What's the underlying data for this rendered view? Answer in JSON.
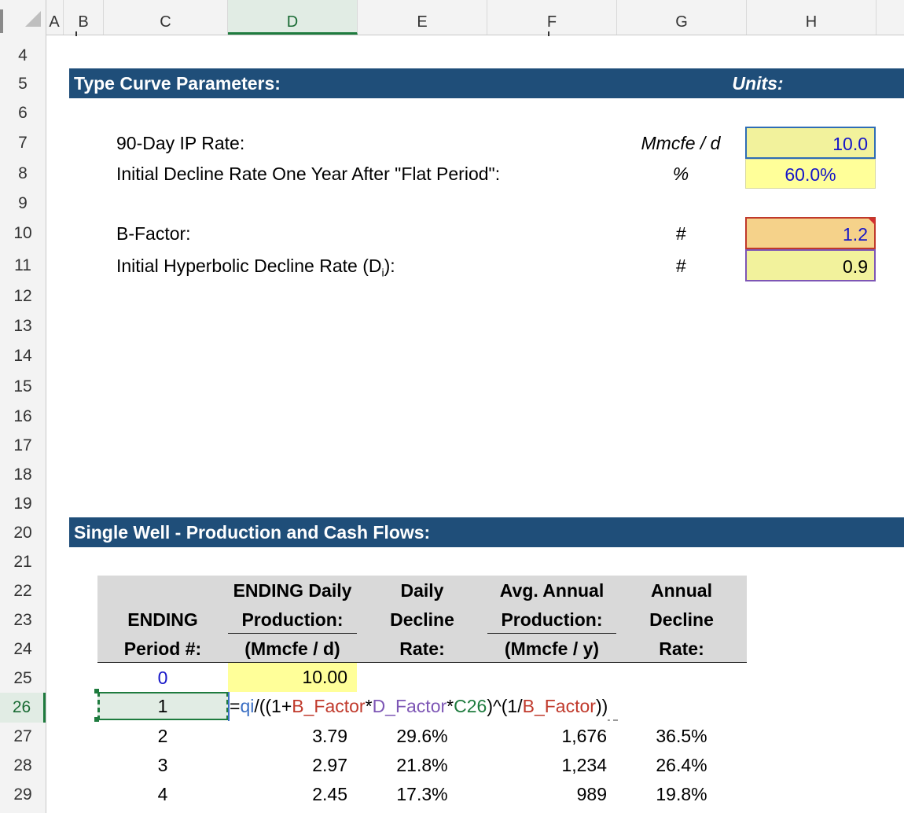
{
  "sheet": {
    "columns": [
      "A",
      "B",
      "C",
      "D",
      "E",
      "F",
      "G",
      "H"
    ],
    "rows": [
      "4",
      "5",
      "6",
      "7",
      "8",
      "9",
      "10",
      "11",
      "12",
      "13",
      "14",
      "15",
      "16",
      "17",
      "18",
      "19",
      "20",
      "21",
      "22",
      "23",
      "24",
      "25",
      "26",
      "27",
      "28",
      "29"
    ],
    "selected_column": "D",
    "selected_row": "26"
  },
  "type_curve": {
    "title": "Type Curve Parameters:",
    "units_header": "Units:",
    "params": [
      {
        "label": "90-Day IP Rate:",
        "unit": "Mmcfe / d",
        "value": "10.0"
      },
      {
        "label": "Initial Decline Rate One Year After \"Flat Period\":",
        "unit": "%",
        "value": "60.0%"
      },
      {
        "label": "B-Factor:",
        "unit": "#",
        "value": "1.2"
      },
      {
        "label_prefix": "Initial Hyperbolic Decline Rate (D",
        "label_sub": "i",
        "label_suffix": "):",
        "unit": "#",
        "value": "0.9"
      }
    ]
  },
  "single_well": {
    "title": "Single Well - Production and Cash Flows:",
    "headers": {
      "period": [
        "ENDING",
        "Period #:"
      ],
      "daily_prod": [
        "ENDING Daily",
        "Production:",
        "(Mmcfe / d)"
      ],
      "daily_decline": [
        "Daily",
        "Decline",
        "Rate:"
      ],
      "annual_prod": [
        "Avg. Annual",
        "Production:",
        "(Mmcfe / y)"
      ],
      "annual_decline": [
        "Annual",
        "Decline",
        "Rate:"
      ]
    },
    "rows": [
      {
        "period": "0",
        "daily": "10.00",
        "daily_decline": "",
        "annual": "",
        "annual_decline": ""
      },
      {
        "period": "1",
        "daily": "",
        "daily_decline": "",
        "annual": "",
        "annual_decline": ""
      },
      {
        "period": "2",
        "daily": "3.79",
        "daily_decline": "29.6%",
        "annual": "1,676",
        "annual_decline": "36.5%"
      },
      {
        "period": "3",
        "daily": "2.97",
        "daily_decline": "21.8%",
        "annual": "1,234",
        "annual_decline": "26.4%"
      },
      {
        "period": "4",
        "daily": "2.45",
        "daily_decline": "17.3%",
        "annual": "989",
        "annual_decline": "19.8%"
      }
    ],
    "formula": {
      "parts": [
        {
          "text": "=",
          "color": "#000000"
        },
        {
          "text": "qi",
          "color": "#3b6fc4"
        },
        {
          "text": "/((1+",
          "color": "#000000"
        },
        {
          "text": "B_Factor",
          "color": "#c0392b"
        },
        {
          "text": "*",
          "color": "#000000"
        },
        {
          "text": "D_Factor",
          "color": "#7d56b5"
        },
        {
          "text": "*",
          "color": "#000000"
        },
        {
          "text": "C26",
          "color": "#1e7b3e"
        },
        {
          "text": ")^(1/",
          "color": "#000000"
        },
        {
          "text": "B_Factor",
          "color": "#c0392b"
        },
        {
          "text": "))",
          "color": "#000000"
        }
      ]
    }
  },
  "colors": {
    "band": "#1f4e79",
    "input_yellow": "#f2f29c",
    "highlight_yellow": "#ffff99",
    "bfactor_orange": "#f5d28a",
    "input_blue_text": "#1616c8",
    "table_header_gray": "#d9d9d9",
    "excel_green": "#1e7b3e"
  }
}
